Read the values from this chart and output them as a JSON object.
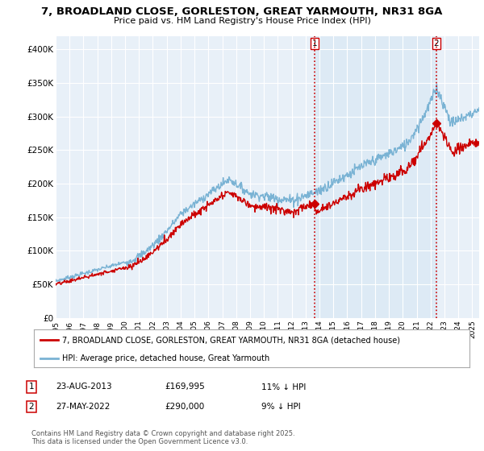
{
  "title": "7, BROADLAND CLOSE, GORLESTON, GREAT YARMOUTH, NR31 8GA",
  "subtitle": "Price paid vs. HM Land Registry's House Price Index (HPI)",
  "hpi_color": "#7ab3d4",
  "price_color": "#cc0000",
  "vline_color": "#cc0000",
  "shaded_color": "#ddeaf5",
  "plot_bg_color": "#e8f0f8",
  "ylim": [
    0,
    420000
  ],
  "yticks": [
    0,
    50000,
    100000,
    150000,
    200000,
    250000,
    300000,
    350000,
    400000
  ],
  "ytick_labels": [
    "£0",
    "£50K",
    "£100K",
    "£150K",
    "£200K",
    "£250K",
    "£300K",
    "£350K",
    "£400K"
  ],
  "xmin": 1995,
  "xmax": 2025.5,
  "legend_label_price": "7, BROADLAND CLOSE, GORLESTON, GREAT YARMOUTH, NR31 8GA (detached house)",
  "legend_label_hpi": "HPI: Average price, detached house, Great Yarmouth",
  "annotation1": {
    "label": "1",
    "date": "23-AUG-2013",
    "price": "£169,995",
    "hpi_diff": "11% ↓ HPI"
  },
  "annotation2": {
    "label": "2",
    "date": "27-MAY-2022",
    "price": "£290,000",
    "hpi_diff": "9% ↓ HPI"
  },
  "footer": "Contains HM Land Registry data © Crown copyright and database right 2025.\nThis data is licensed under the Open Government Licence v3.0.",
  "sale1_x": 2013.65,
  "sale1_y": 169995,
  "sale2_x": 2022.41,
  "sale2_y": 290000
}
